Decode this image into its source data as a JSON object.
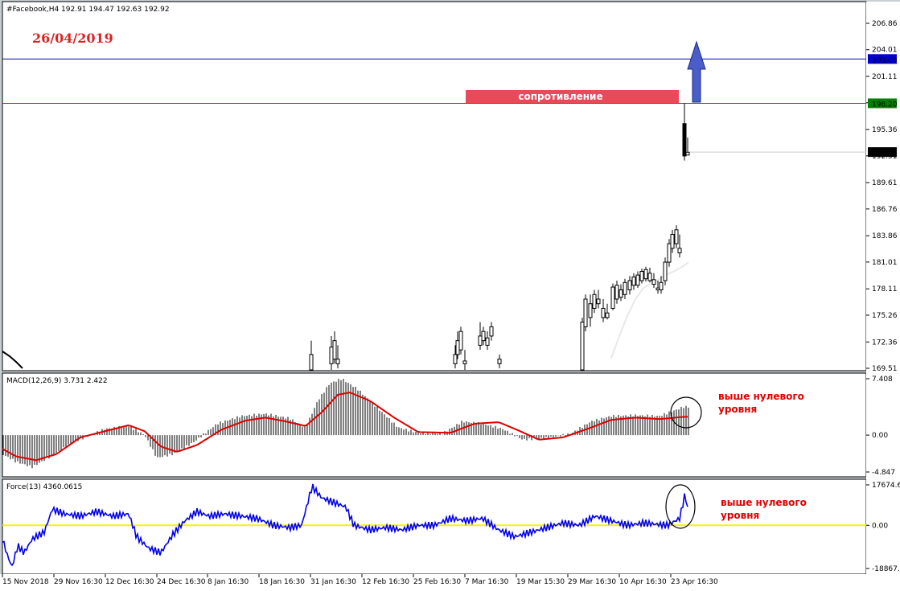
{
  "main": {
    "header": "#Facebook,H4  192.91 194.47 192.63 192.92",
    "date_note": "26/04/2019",
    "resistance_label": "сопротивление",
    "price_ticks": [
      "206.86",
      "204.01",
      "201.11",
      "198.26",
      "195.36",
      "192.51",
      "189.61",
      "186.76",
      "183.86",
      "181.01",
      "178.11",
      "175.26",
      "172.36",
      "169.51"
    ],
    "level_blue": "203.00",
    "level_green": "198.20",
    "last_price": "192.92"
  },
  "macd": {
    "header": "MACD(12,26,9) 3.731 2.422",
    "ticks": [
      "7.408",
      "0.00",
      "-4.847"
    ],
    "annotation_line1": "выше нулевого",
    "annotation_line2": "уровня"
  },
  "force": {
    "header": "Force(13) 4360.0615",
    "ticks": [
      "17674.61",
      "0.00",
      "-18867.4"
    ],
    "annotation_line1": "выше нулевого",
    "annotation_line2": "уровня"
  },
  "dates": [
    "15 Nov 2018",
    "29 Nov 16:30",
    "12 Dec 16:30",
    "24 Dec 16:30",
    "8 Jan 16:30",
    "18 Jan 16:30",
    "31 Jan 16:30",
    "12 Feb 16:30",
    "25 Feb 16:30",
    "7 Mar 16:30",
    "19 Mar 15:30",
    "29 Mar 16:30",
    "10 Apr 16:30",
    "23 Apr 16:30"
  ],
  "colors": {
    "background": "#ffffff",
    "frame": "#c8d0d4",
    "level_blue": "#0000cc",
    "level_green": "#008000",
    "resistance_box": "#e84a5a",
    "arrow": "#4a5dc8",
    "macd_signal": "#e00000",
    "force_line": "#0000ee",
    "zero_line": "#f5f500",
    "annotation": "#e00000",
    "date_note": "#e02020"
  },
  "chart_data": [
    {
      "type": "candlestick",
      "name": "main",
      "ylim": [
        169.51,
        206.86
      ],
      "y_ticks": [
        206.86,
        204.01,
        201.11,
        198.26,
        195.36,
        192.51,
        189.61,
        186.76,
        183.86,
        181.01,
        178.11,
        175.26,
        172.36,
        169.51
      ],
      "levels": [
        203.0,
        198.2
      ],
      "last_price": 192.92,
      "ohlc_last": {
        "open": 192.91,
        "high": 194.47,
        "low": 192.63,
        "close": 192.92
      },
      "ma_line": [
        [
          760,
          170.6
        ],
        [
          770,
          173.0
        ],
        [
          780,
          175.2
        ],
        [
          790,
          177.0
        ],
        [
          800,
          178.2
        ],
        [
          810,
          178.7
        ],
        [
          820,
          179.2
        ],
        [
          830,
          179.7
        ],
        [
          840,
          180.1
        ],
        [
          850,
          180.6
        ],
        [
          856,
          181.0
        ]
      ]
    },
    {
      "type": "bar",
      "name": "MACD",
      "ylim": [
        -4.847,
        7.408
      ],
      "macd_last": 3.731,
      "signal_last": 2.422
    },
    {
      "type": "line",
      "name": "Force",
      "ylim": [
        -18867.4,
        17674.61
      ],
      "force_last": 4360.0615
    }
  ]
}
